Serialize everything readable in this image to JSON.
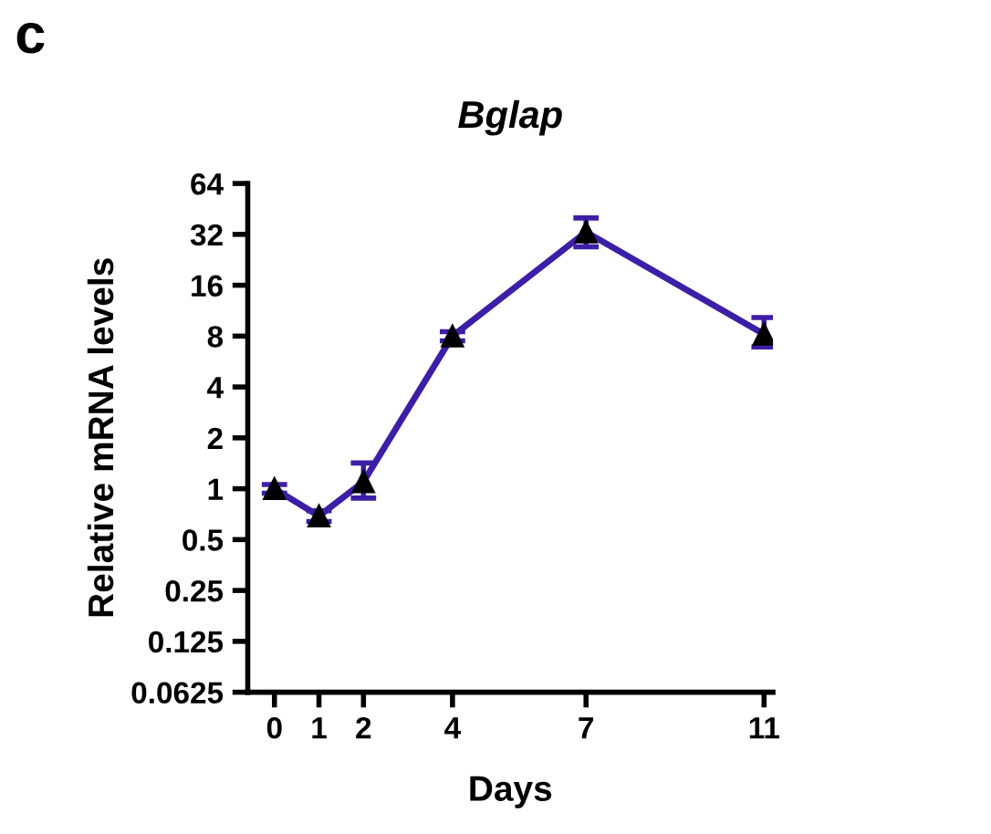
{
  "chart_data": {
    "type": "line",
    "title": "Bglap",
    "xlabel": "Days",
    "ylabel": "Relative mRNA levels",
    "annotations": [
      "c"
    ],
    "x": [
      0,
      1,
      2,
      4,
      7,
      11
    ],
    "series": [
      {
        "color": "#3d1ea6",
        "values": [
          1,
          0.69,
          1.1,
          8,
          33,
          8.2
        ],
        "errors": [
          0.06,
          0.05,
          [
            0.88,
            1.42
          ],
          0.5,
          [
            27,
            40
          ],
          [
            6.9,
            10.3
          ]
        ]
      }
    ],
    "log": "y",
    "xlim": [
      -0.6,
      11.2
    ],
    "xticks": [
      0,
      1,
      2,
      4,
      7,
      11
    ],
    "ylim": [
      0.0625,
      64
    ],
    "yticks": [
      64,
      32,
      16,
      8,
      4,
      2,
      1,
      0.5,
      0.25,
      0.125,
      0.0625
    ],
    "marker": "triangle",
    "line_style": "solid",
    "grid": false,
    "legend": false
  }
}
